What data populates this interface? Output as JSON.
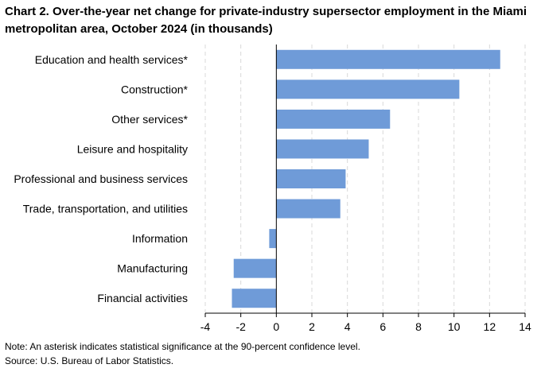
{
  "chart_data": {
    "type": "bar",
    "orientation": "horizontal",
    "title": "Chart 2. Over-the-year net change for private-industry supersector employment in the Miami metropolitan area, October 2024 (in thousands)",
    "categories": [
      "Education and health services*",
      "Construction*",
      "Other services*",
      "Leisure and hospitality",
      "Professional and business services",
      "Trade, transportation, and utilities",
      "Information",
      "Manufacturing",
      "Financial activities"
    ],
    "values": [
      12.6,
      10.3,
      6.4,
      5.2,
      3.9,
      3.6,
      -0.4,
      -2.4,
      -2.5
    ],
    "xlim": [
      -4,
      14
    ],
    "xticks": [
      "-4",
      "-2",
      "0",
      "2",
      "4",
      "6",
      "8",
      "10",
      "12",
      "14"
    ],
    "xlabel": "",
    "ylabel": "",
    "grid": "vertical-dashed",
    "bar_color": "#6f9bd8"
  },
  "notes": {
    "note": "Note: An asterisk indicates statistical significance at the 90-percent confidence level.",
    "source": "Source: U.S. Bureau of Labor Statistics."
  }
}
